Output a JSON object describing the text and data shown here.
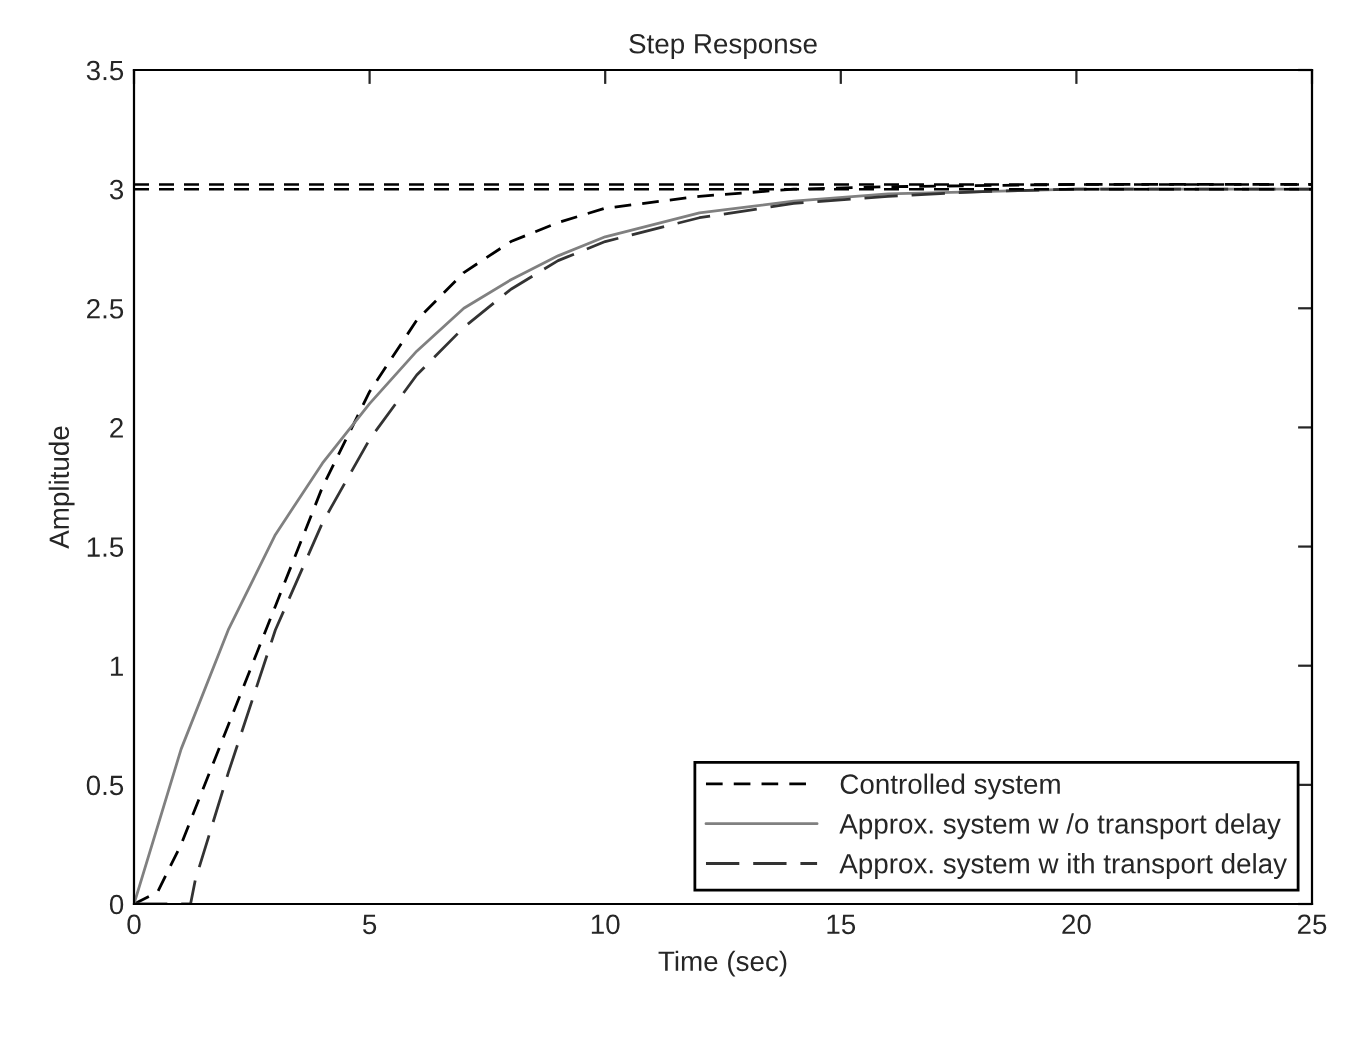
{
  "chart_data": {
    "type": "line",
    "title": "Step Response",
    "xlabel": "Time (sec)",
    "ylabel": "Amplitude",
    "xlim": [
      0,
      25
    ],
    "ylim": [
      0,
      3.5
    ],
    "xticks": [
      0,
      5,
      10,
      15,
      20,
      25
    ],
    "yticks": [
      0,
      0.5,
      1,
      1.5,
      2,
      2.5,
      3,
      3.5
    ],
    "grid": false,
    "legend": "bottom right",
    "marker": "none",
    "ref_lines": [
      {
        "axis": "y",
        "value": 3.02,
        "line_style": "dashed",
        "color": "#000000"
      },
      {
        "axis": "y",
        "value": 3.0,
        "line_style": "dashed",
        "color": "#000000"
      }
    ],
    "series": [
      {
        "name": "Controlled system",
        "color": "#000000",
        "line_style": "dashed",
        "x": [
          0,
          0.5,
          1,
          2,
          3,
          4,
          5,
          6,
          7,
          8,
          9,
          10,
          12,
          14,
          16,
          20,
          25
        ],
        "values": [
          0,
          0.05,
          0.25,
          0.75,
          1.25,
          1.75,
          2.15,
          2.45,
          2.65,
          2.78,
          2.86,
          2.92,
          2.97,
          3.0,
          3.01,
          3.02,
          3.02
        ]
      },
      {
        "name": "Approx. system w /o transport delay",
        "color": "#808080",
        "line_style": "solid",
        "x": [
          0,
          1,
          2,
          3,
          4,
          5,
          6,
          7,
          8,
          9,
          10,
          12,
          14,
          16,
          18,
          20,
          25
        ],
        "values": [
          0,
          0.65,
          1.15,
          1.55,
          1.85,
          2.1,
          2.32,
          2.5,
          2.62,
          2.72,
          2.8,
          2.9,
          2.95,
          2.98,
          2.99,
          3.0,
          3.0
        ]
      },
      {
        "name": "Approx. system w ith transport delay",
        "color": "#333333",
        "line_style": "dashed",
        "x": [
          0,
          1.2,
          1.3,
          2,
          3,
          4,
          5,
          6,
          7,
          8,
          9,
          10,
          12,
          14,
          16,
          18,
          20,
          25
        ],
        "values": [
          0,
          0,
          0.1,
          0.55,
          1.15,
          1.6,
          1.95,
          2.22,
          2.42,
          2.58,
          2.7,
          2.78,
          2.88,
          2.94,
          2.97,
          2.99,
          3.0,
          3.0
        ]
      }
    ]
  }
}
